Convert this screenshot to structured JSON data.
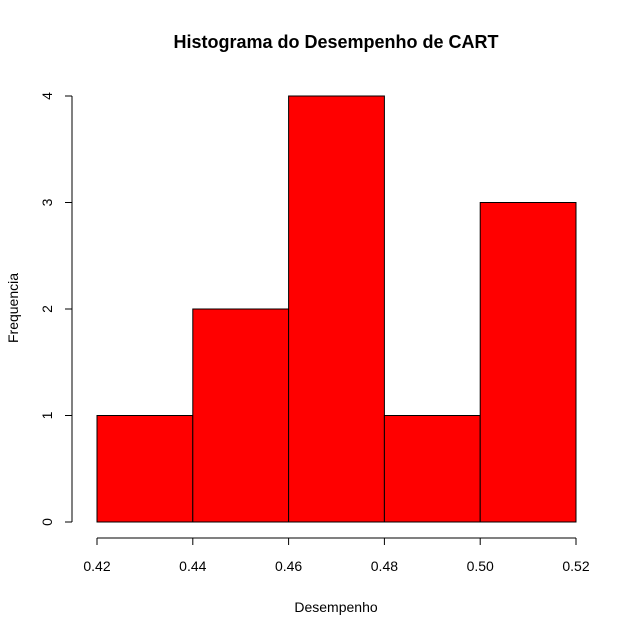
{
  "chart_data": {
    "type": "bar",
    "title": "Histograma do Desempenho de CART",
    "xlabel": "Desempenho",
    "ylabel": "Frequencia",
    "bins": [
      {
        "start": 0.42,
        "end": 0.44,
        "count": 1
      },
      {
        "start": 0.44,
        "end": 0.46,
        "count": 2
      },
      {
        "start": 0.46,
        "end": 0.48,
        "count": 4
      },
      {
        "start": 0.48,
        "end": 0.5,
        "count": 1
      },
      {
        "start": 0.5,
        "end": 0.52,
        "count": 3
      }
    ],
    "xlim": [
      0.42,
      0.52
    ],
    "ylim": [
      0,
      4
    ],
    "x_ticks": [
      "0.42",
      "0.44",
      "0.46",
      "0.48",
      "0.50",
      "0.52"
    ],
    "y_ticks": [
      "0",
      "1",
      "2",
      "3",
      "4"
    ],
    "bar_color": "#ff0000",
    "grid": false
  }
}
